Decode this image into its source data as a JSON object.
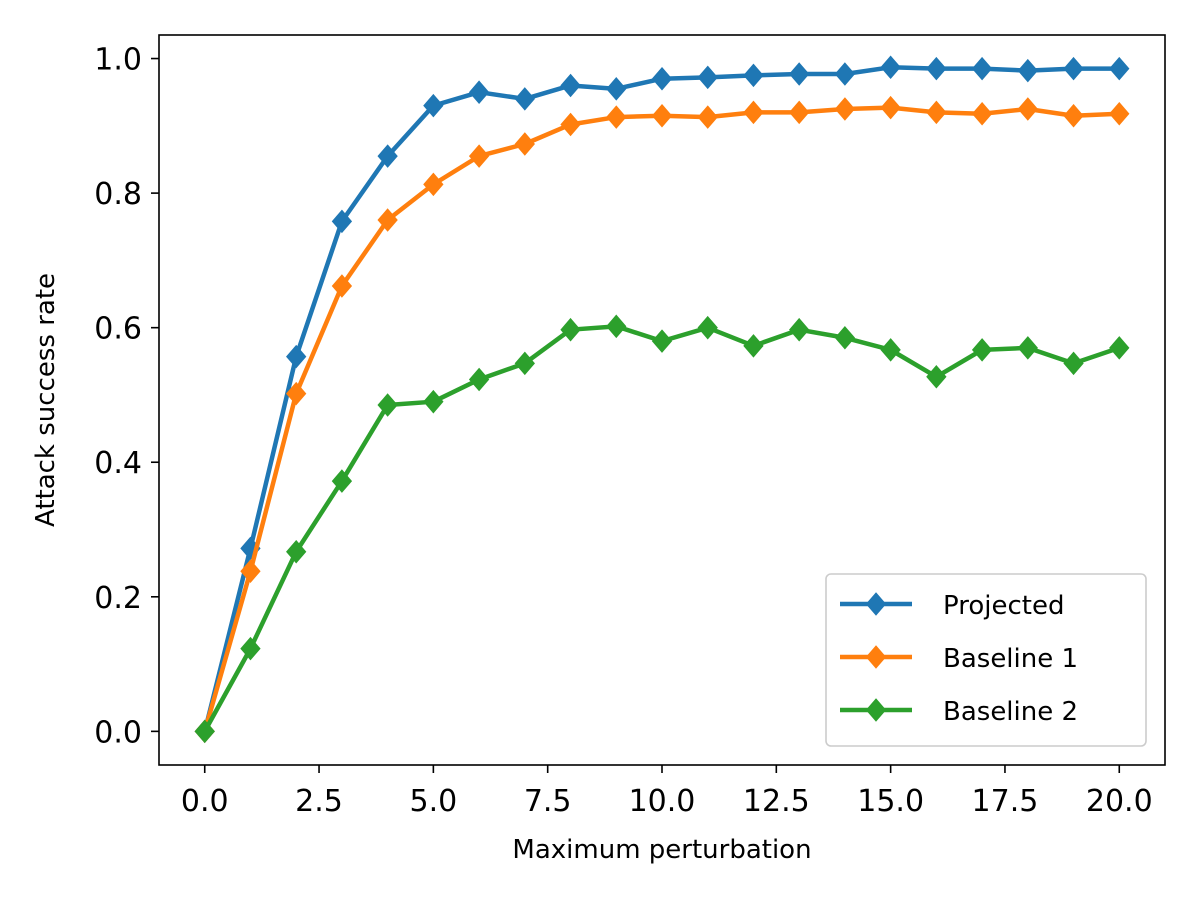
{
  "chart_data": {
    "type": "line",
    "title": "",
    "xlabel": "Maximum perturbation",
    "ylabel": "Attack success rate",
    "xlim": [
      -1,
      21
    ],
    "ylim": [
      -0.05,
      1.035
    ],
    "xticks": [
      0.0,
      2.5,
      5.0,
      7.5,
      10.0,
      12.5,
      15.0,
      17.5,
      20.0
    ],
    "xtick_labels": [
      "0.0",
      "2.5",
      "5.0",
      "7.5",
      "10.0",
      "12.5",
      "15.0",
      "17.5",
      "20.0"
    ],
    "yticks": [
      0.0,
      0.2,
      0.4,
      0.6,
      0.8,
      1.0
    ],
    "ytick_labels": [
      "0.0",
      "0.2",
      "0.4",
      "0.6",
      "0.8",
      "1.0"
    ],
    "grid": false,
    "legend_position": "lower-right",
    "marker": "diamond",
    "x": [
      0,
      1,
      2,
      3,
      4,
      5,
      6,
      7,
      8,
      9,
      10,
      11,
      12,
      13,
      14,
      15,
      16,
      17,
      18,
      19,
      20
    ],
    "series": [
      {
        "name": "Projected",
        "color": "#1f77b4",
        "values": [
          0.0,
          0.272,
          0.557,
          0.758,
          0.855,
          0.93,
          0.95,
          0.94,
          0.96,
          0.955,
          0.97,
          0.972,
          0.975,
          0.977,
          0.977,
          0.987,
          0.985,
          0.985,
          0.982,
          0.985,
          0.985
        ]
      },
      {
        "name": "Baseline 1",
        "color": "#ff7f0e",
        "values": [
          0.0,
          0.238,
          0.502,
          0.662,
          0.76,
          0.813,
          0.855,
          0.873,
          0.902,
          0.913,
          0.915,
          0.913,
          0.92,
          0.92,
          0.925,
          0.927,
          0.92,
          0.918,
          0.925,
          0.915,
          0.918
        ]
      },
      {
        "name": "Baseline 2",
        "color": "#2ca02c",
        "values": [
          0.0,
          0.123,
          0.267,
          0.372,
          0.485,
          0.49,
          0.523,
          0.547,
          0.597,
          0.602,
          0.58,
          0.6,
          0.573,
          0.597,
          0.585,
          0.567,
          0.527,
          0.567,
          0.57,
          0.547,
          0.57
        ]
      }
    ]
  }
}
